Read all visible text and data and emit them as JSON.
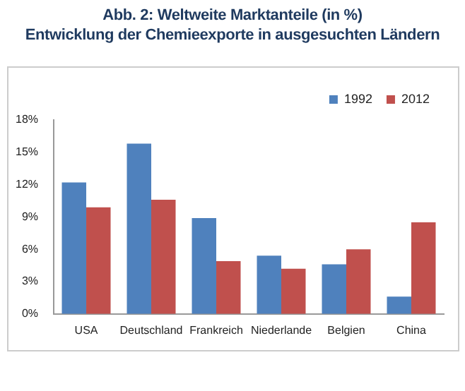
{
  "chart_data": {
    "type": "bar",
    "title": "Abb. 2:  Weltweite Marktanteile (in %)\nEntwicklung der Chemieexporte in ausgesuchten Ländern",
    "categories": [
      "USA",
      "Deutschland",
      "Frankreich",
      "Niederlande",
      "Belgien",
      "China"
    ],
    "series": [
      {
        "name": "1992",
        "color": "#4f81bd",
        "values": [
          12.2,
          15.8,
          8.9,
          5.4,
          4.6,
          1.6
        ]
      },
      {
        "name": "2012",
        "color": "#c0504d",
        "values": [
          9.9,
          10.6,
          4.9,
          4.2,
          6.0,
          8.5
        ]
      }
    ],
    "ylim": [
      0,
      18
    ],
    "yticks": [
      {
        "value": 0,
        "label": "0%"
      },
      {
        "value": 3,
        "label": "3%"
      },
      {
        "value": 6,
        "label": "6%"
      },
      {
        "value": 9,
        "label": "9%"
      },
      {
        "value": 12,
        "label": "12%"
      },
      {
        "value": 15,
        "label": "15%"
      },
      {
        "value": 18,
        "label": "18%"
      }
    ],
    "grid": false,
    "legend": "top right"
  }
}
